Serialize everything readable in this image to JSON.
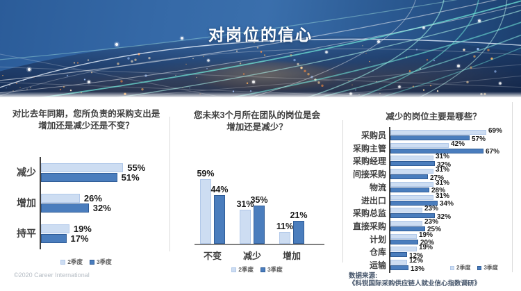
{
  "header": {
    "title": "对岗位的信心"
  },
  "legend": {
    "items": [
      {
        "label": "2季度"
      },
      {
        "label": "3季度"
      }
    ]
  },
  "source": {
    "line1": "数据来源:",
    "line2": "《科锐国际采购供应链人就业信心指数调研》"
  },
  "footer": {
    "copyright": "©2020 Career International"
  },
  "colors": {
    "q2_light": "#cdddf2",
    "q2_border": "#b1c8e9",
    "q3_dark": "#4a7dbd",
    "q3_border": "#2e5b96",
    "axis": "#404040",
    "baseline": "#808080",
    "title_text": "#3f3f3f",
    "value_text": "#1a1a1a",
    "legend_text": "#595959",
    "source_text": "#44546a",
    "copyright_text": "#b5bcc4"
  },
  "chart_data": [
    {
      "type": "bar",
      "orientation": "horizontal",
      "title_lines": [
        "对比去年同期，您所负责的采购支出是",
        "增加还是减少还是不变？"
      ],
      "categories": [
        "减少",
        "增加",
        "持平"
      ],
      "series": [
        {
          "name": "2季度",
          "values": [
            55,
            26,
            19
          ]
        },
        {
          "name": "3季度",
          "values": [
            51,
            32,
            17
          ]
        }
      ],
      "unit": "%",
      "value_labels": true,
      "xlim": [
        0,
        60
      ],
      "grid": false,
      "legend_position": "bottom-center"
    },
    {
      "type": "bar",
      "orientation": "vertical",
      "title_lines": [
        "您未来3个月所在团队的岗位是会",
        "增加还是减少？"
      ],
      "categories": [
        "不变",
        "减少",
        "增加"
      ],
      "series": [
        {
          "name": "2季度",
          "values": [
            59,
            31,
            11
          ]
        },
        {
          "name": "3季度",
          "values": [
            44,
            35,
            21
          ]
        }
      ],
      "unit": "%",
      "value_labels": true,
      "ylim": [
        0,
        65
      ],
      "grid": false,
      "legend_position": "bottom-center"
    },
    {
      "type": "bar",
      "orientation": "horizontal",
      "title_lines": [
        "减少的岗位主要是哪些？"
      ],
      "categories": [
        "采购员",
        "采购主管",
        "采购经理",
        "间接采购",
        "物流",
        "进出口",
        "采购总监",
        "直接采购",
        "计划",
        "仓库",
        "运输"
      ],
      "series": [
        {
          "name": "2季度",
          "values": [
            69,
            42,
            31,
            31,
            31,
            31,
            23,
            23,
            19,
            19,
            12
          ]
        },
        {
          "name": "3季度",
          "values": [
            57,
            67,
            32,
            27,
            28,
            34,
            32,
            25,
            20,
            12,
            13
          ]
        }
      ],
      "unit": "%",
      "value_labels": true,
      "xlim": [
        0,
        75
      ],
      "grid": false,
      "legend_position": "bottom-right"
    }
  ]
}
